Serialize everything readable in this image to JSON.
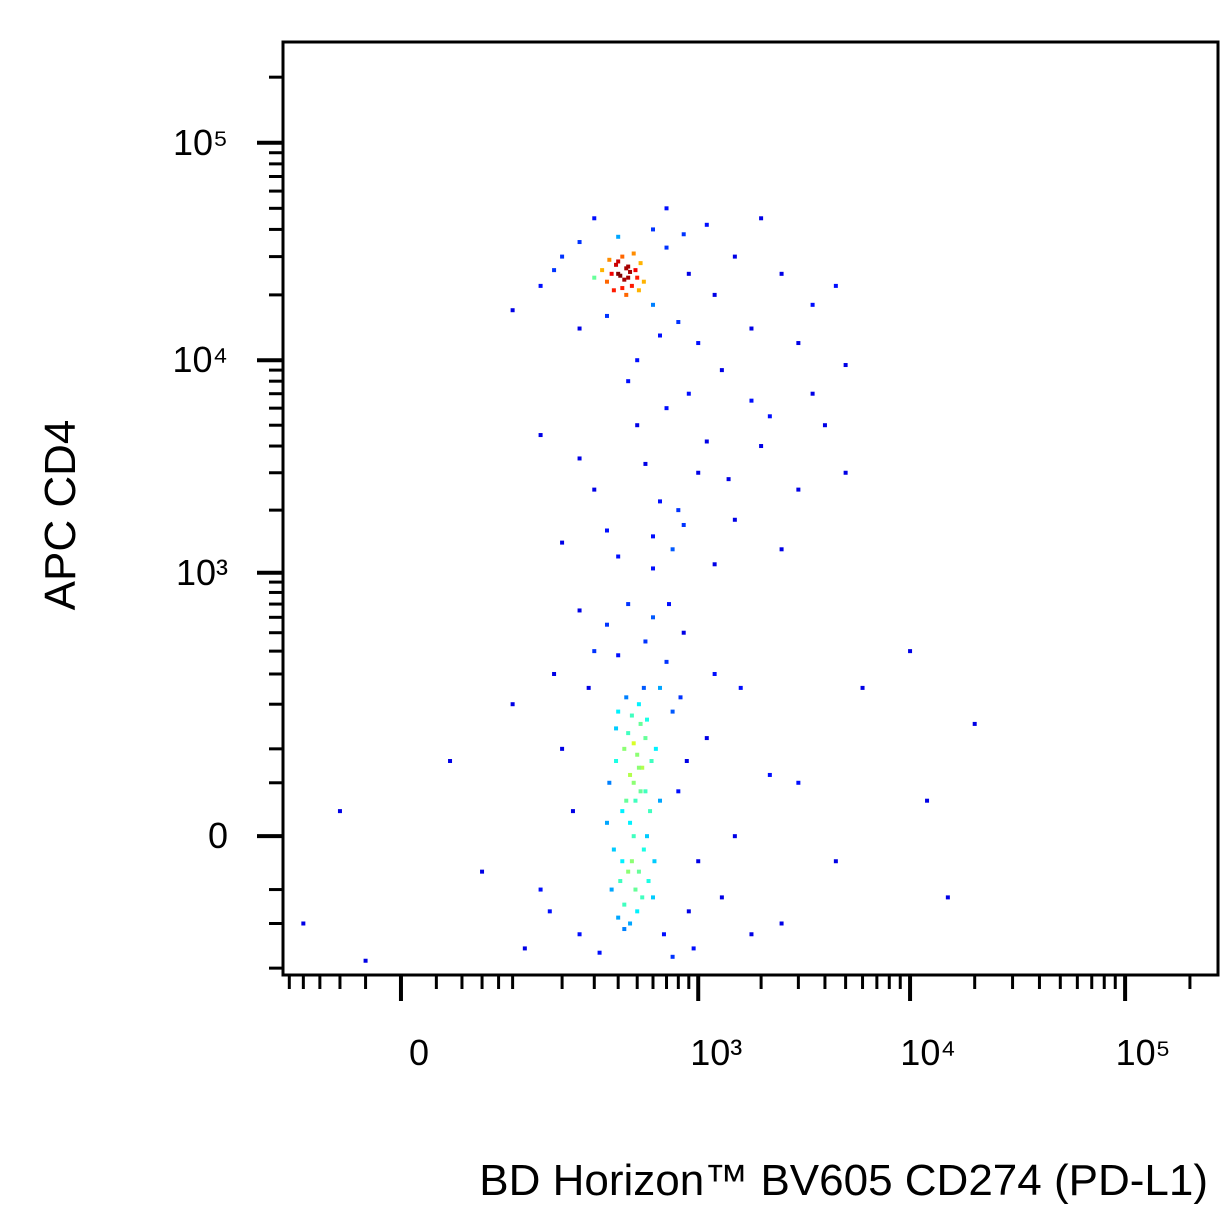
{
  "chart_data": {
    "type": "scatter",
    "xlabel": "BD Horizon™ BV605 CD274 (PD-L1)",
    "ylabel": "APC CD4",
    "xscale": "biexponential",
    "yscale": "biexponential",
    "xlim": [
      -110,
      270000
    ],
    "ylim": [
      -220,
      290000
    ],
    "xticks": [
      0,
      {
        "value": 1000,
        "label": "10³"
      },
      {
        "value": 10000,
        "label": "10⁴"
      },
      {
        "value": 100000,
        "label": "10⁵"
      }
    ],
    "yticks": [
      0,
      {
        "value": 1000,
        "label": "10³"
      },
      {
        "value": 10000,
        "label": "10⁴"
      },
      {
        "value": 100000,
        "label": "10⁵"
      }
    ],
    "xminor": [
      -100,
      -80,
      -60,
      -40,
      -20,
      20,
      40,
      60,
      80,
      100,
      200,
      300,
      400,
      500,
      600,
      700,
      800,
      900,
      2000,
      3000,
      4000,
      5000,
      6000,
      7000,
      8000,
      9000,
      20000,
      30000,
      40000,
      50000,
      60000,
      70000,
      80000,
      90000,
      200000
    ],
    "yminor": [
      -200,
      -100,
      -50,
      50,
      100,
      200,
      300,
      400,
      500,
      600,
      700,
      800,
      900,
      2000,
      3000,
      4000,
      5000,
      6000,
      7000,
      8000,
      9000,
      20000,
      30000,
      40000,
      50000,
      60000,
      70000,
      80000,
      90000,
      200000
    ],
    "x": [
      420,
      510,
      460,
      380,
      550,
      600,
      480,
      430,
      520,
      390,
      470,
      560,
      500,
      440,
      410,
      530,
      490,
      450,
      580,
      360,
      620,
      470,
      400,
      540,
      510,
      350,
      650,
      480,
      430,
      570,
      460,
      520,
      390,
      610,
      440,
      500,
      550,
      420,
      480,
      530,
      370,
      590,
      460,
      510,
      450,
      400,
      560,
      490,
      430,
      540,
      150,
      200,
      250,
      800,
      900,
      1100,
      1500,
      2200,
      100,
      60,
      -40,
      -80,
      300,
      700,
      850,
      600,
      450,
      350,
      1200,
      180,
      120,
      950,
      750,
      650,
      280,
      320,
      1300,
      1800,
      3000,
      4500,
      12000,
      15000,
      20000,
      10000,
      6000,
      250,
      550,
      400,
      750,
      680,
      820,
      230,
      170,
      880,
      1000,
      1600,
      2500,
      -20,
      30,
      720,
      400,
      600,
      800,
      1500,
      300,
      1000,
      2000,
      500,
      700,
      3000,
      1200,
      250,
      900,
      4000,
      1800,
      350,
      650,
      2500,
      150,
      1100,
      5000,
      450,
      750,
      1400,
      200,
      3500,
      850,
      550,
      2200,
      600,
      400,
      450,
      350,
      500,
      420,
      380,
      470,
      520,
      330,
      440,
      410,
      490,
      360,
      430,
      460,
      540,
      300,
      390,
      480,
      420,
      370,
      510,
      450,
      400,
      440,
      150,
      200,
      700,
      900,
      1200,
      600,
      300,
      800,
      250,
      1500,
      2500,
      3500,
      1000,
      500,
      100,
      700,
      2000,
      350,
      1800,
      4500,
      600,
      850,
      1300,
      250,
      3000,
      5000,
      180,
      1100,
      400,
      650
    ],
    "values": [
      20,
      -30,
      60,
      -10,
      40,
      -60,
      110,
      -70,
      150,
      80,
      -20,
      0,
      90,
      30,
      -40,
      70,
      -50,
      130,
      20,
      50,
      100,
      170,
      -90,
      -10,
      200,
      10,
      30,
      0,
      100,
      -40,
      -100,
      40,
      140,
      -20,
      220,
      -80,
      120,
      -20,
      50,
      -60,
      -50,
      80,
      10,
      70,
      -30,
      180,
      160,
      30,
      -110,
      250,
      -50,
      100,
      -120,
      40,
      -80,
      120,
      0,
      60,
      200,
      -30,
      20,
      -100,
      400,
      350,
      500,
      600,
      700,
      550,
      300,
      300,
      -150,
      -150,
      -170,
      250,
      250,
      -160,
      -60,
      -120,
      50,
      -20,
      30,
      -60,
      150,
      400,
      250,
      650,
      450,
      380,
      180,
      -120,
      220,
      20,
      -80,
      80,
      -20,
      250,
      -100,
      -180,
      80,
      700,
      1200,
      1500,
      2000,
      1800,
      2500,
      3000,
      4000,
      5000,
      6000,
      2500,
      1100,
      3500,
      7000,
      5000,
      6500,
      1600,
      2200,
      1300,
      4500,
      4200,
      3000,
      8000,
      1300,
      2800,
      1400,
      7000,
      1700,
      3300,
      5500,
      1050,
      25000,
      27000,
      23000,
      24000,
      30000,
      21000,
      22000,
      28000,
      26000,
      20000,
      24500,
      26000,
      29000,
      23500,
      25500,
      23000,
      24000,
      27500,
      31000,
      21500,
      25000,
      21000,
      24000,
      28500,
      26500,
      22000,
      30000,
      33000,
      25000,
      20000,
      40000,
      45000,
      15000,
      14000,
      30000,
      25000,
      18000,
      12000,
      10000,
      17000,
      50000,
      45000,
      16000,
      14000,
      22000,
      18000,
      38000,
      9000,
      35000,
      12000,
      9500,
      26000,
      42000,
      37000,
      13000
    ]
  }
}
